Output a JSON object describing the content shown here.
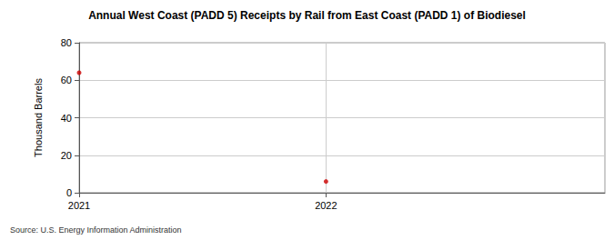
{
  "chart_data": {
    "type": "scatter",
    "title": "Annual West Coast (PADD 5) Receipts by Rail from East Coast (PADD 1) of Biodiesel",
    "y_label": "Thousand Barrels",
    "source": "Source: U.S. Energy Information Administration",
    "x": [
      2021,
      2022
    ],
    "values": [
      64,
      6
    ],
    "color": "#cc0000",
    "marker": "circle",
    "xlim": [
      2021,
      2023.13
    ],
    "xticks": [
      2021,
      2022
    ],
    "ylim": [
      0,
      80
    ],
    "yticks": [
      0,
      20,
      40,
      60,
      80
    ],
    "grid": true
  }
}
